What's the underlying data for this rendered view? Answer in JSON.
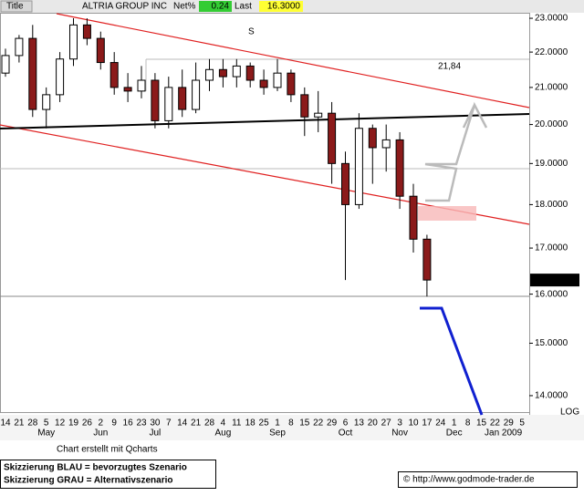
{
  "header": {
    "title_tab": "Title",
    "name": "ALTRIA GROUP INC",
    "net_label": "Net%",
    "net_value": "0.24",
    "last_label": "Last",
    "last_value": "16.3000"
  },
  "chart_data": {
    "type": "candlestick",
    "log_scale": true,
    "up_color": "#ffffff",
    "down_color": "#8b1a1a",
    "categories": [
      "14",
      "21",
      "28",
      "5",
      "12",
      "19",
      "26",
      "2",
      "9",
      "16",
      "23",
      "30",
      "7",
      "14",
      "21",
      "28",
      "4",
      "11",
      "18",
      "25",
      "1",
      "8",
      "15",
      "22",
      "29",
      "6",
      "13",
      "20",
      "27",
      "3",
      "10",
      "17",
      "24",
      "1",
      "8",
      "15",
      "22",
      "29",
      "5"
    ],
    "months": [
      {
        "label": "May",
        "index": 3
      },
      {
        "label": "Jun",
        "index": 7
      },
      {
        "label": "Jul",
        "index": 11
      },
      {
        "label": "Aug",
        "index": 16
      },
      {
        "label": "Sep",
        "index": 20
      },
      {
        "label": "Oct",
        "index": 25
      },
      {
        "label": "Nov",
        "index": 29
      },
      {
        "label": "Dec",
        "index": 33
      },
      {
        "label": "Jan 2009",
        "index": 38
      }
    ],
    "open": [
      21.4,
      21.9,
      22.4,
      20.4,
      20.8,
      21.8,
      22.8,
      22.4,
      21.7,
      21.0,
      20.9,
      21.2,
      20.1,
      21.0,
      20.4,
      21.2,
      21.5,
      21.3,
      21.6,
      21.2,
      21.0,
      21.4,
      20.8,
      20.2,
      20.3,
      19.0,
      18.0,
      19.9,
      19.4,
      19.6,
      18.2,
      17.2,
      null,
      null,
      null,
      null,
      null,
      null,
      null
    ],
    "high": [
      22.1,
      22.5,
      22.8,
      21.0,
      22.0,
      23.0,
      23.0,
      22.6,
      22.0,
      21.4,
      21.6,
      21.4,
      21.3,
      21.5,
      21.7,
      21.8,
      21.8,
      21.8,
      21.7,
      21.5,
      21.8,
      21.5,
      21.0,
      20.9,
      20.6,
      19.3,
      20.3,
      20.0,
      20.0,
      19.8,
      18.5,
      17.3,
      null,
      null,
      null,
      null,
      null,
      null,
      null
    ],
    "low": [
      21.3,
      21.7,
      20.2,
      19.9,
      20.6,
      21.6,
      22.2,
      21.5,
      20.8,
      20.6,
      20.7,
      19.9,
      19.9,
      20.2,
      20.3,
      20.9,
      21.0,
      21.0,
      21.0,
      20.8,
      20.9,
      20.6,
      19.7,
      19.8,
      18.5,
      16.3,
      17.9,
      18.5,
      18.8,
      17.9,
      16.9,
      15.95,
      null,
      null,
      null,
      null,
      null,
      null,
      null
    ],
    "close": [
      21.9,
      22.4,
      20.4,
      20.8,
      21.8,
      22.8,
      22.4,
      21.7,
      21.0,
      20.9,
      21.2,
      20.1,
      21.0,
      20.4,
      21.2,
      21.5,
      21.3,
      21.6,
      21.2,
      21.0,
      21.4,
      20.8,
      20.2,
      20.3,
      19.0,
      18.0,
      19.9,
      19.4,
      19.6,
      18.2,
      17.2,
      16.3,
      null,
      null,
      null,
      null,
      null,
      null,
      null
    ],
    "ylim": [
      13.7,
      23.56
    ],
    "yticks": [
      {
        "value": 14,
        "label": "14.0000"
      },
      {
        "value": 15,
        "label": "15.0000"
      },
      {
        "value": 16,
        "label": "16.0000"
      },
      {
        "value": 17,
        "label": "17.0000"
      },
      {
        "value": 18,
        "label": "18.0000"
      },
      {
        "value": 19,
        "label": "19.0000"
      },
      {
        "value": 20,
        "label": "20.0000"
      },
      {
        "value": 21,
        "label": "21.0000"
      },
      {
        "value": 22,
        "label": "22.0000"
      },
      {
        "value": 23,
        "label": "23.0000"
      }
    ],
    "last_price": {
      "value": 16.3,
      "label": "16.3000"
    },
    "annotations": [
      "S",
      "21,84"
    ],
    "scale_label": "LOG"
  },
  "footer": {
    "credit": "Chart erstellt mit Qcharts",
    "legend_blue": "Skizzierung BLAU = bevorzugtes Szenario",
    "legend_grey": "Skizzierung GRAU = Alternativszenario",
    "source": "© http://www.godmode-trader.de"
  }
}
